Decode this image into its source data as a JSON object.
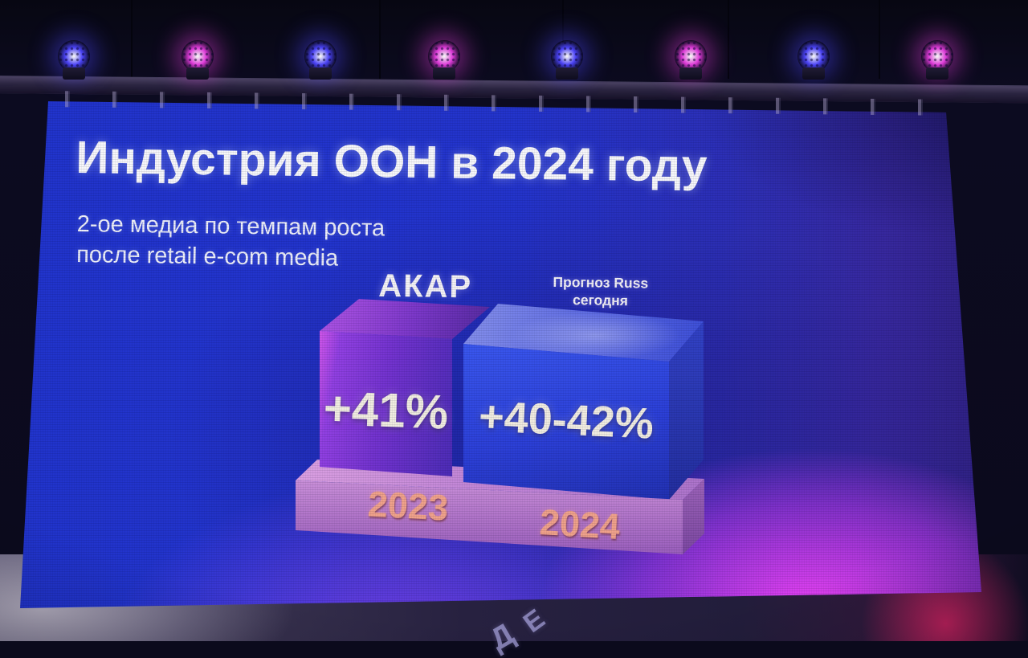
{
  "chart_data": {
    "type": "bar",
    "title": "Индустрия ООН в 2024 году",
    "subtitle": "2-ое медиа по темпам роста после retail e-com media",
    "categories": [
      "2023",
      "2024"
    ],
    "series": [
      {
        "name": "АКАР",
        "category": "2023",
        "value_label": "+41%",
        "value_pct": 41
      },
      {
        "name": "Прогноз Russ сегодня",
        "category": "2024",
        "value_label": "+40-42%",
        "value_pct_range": [
          40,
          42
        ]
      }
    ],
    "grid": false,
    "legend_position": "above-bars",
    "style": "3d-blocks-on-pedestal"
  },
  "slide": {
    "title": "Индустрия ООН в 2024 году",
    "subtitle_lines": [
      "2-ое медиа по темпам роста",
      "после retail e-com media"
    ],
    "bar_left": {
      "source_label": "АКАР",
      "value": "+41%",
      "year": "2023"
    },
    "bar_right": {
      "source_label_lines": [
        "Прогноз Russ",
        "сегодня"
      ],
      "value": "+40-42%",
      "year": "2024"
    }
  },
  "stage": {
    "lights": [
      "blue",
      "magenta",
      "blue",
      "magenta",
      "blue",
      "magenta",
      "blue",
      "magenta"
    ],
    "front_letters": [
      "Д",
      "Е"
    ]
  },
  "colors": {
    "light_blue": "#4a42f5",
    "light_magenta": "#dd3ad8",
    "slide_base_blue": "#2334cc",
    "block_2023_purple": "#7a36d4",
    "block_2024_blue": "#2c42d8",
    "pedestal_pink": "#b878d0",
    "year_copper": "#f0a28b",
    "bottom_magenta": "#e04df2",
    "stage_glow_red": "#e12364"
  }
}
